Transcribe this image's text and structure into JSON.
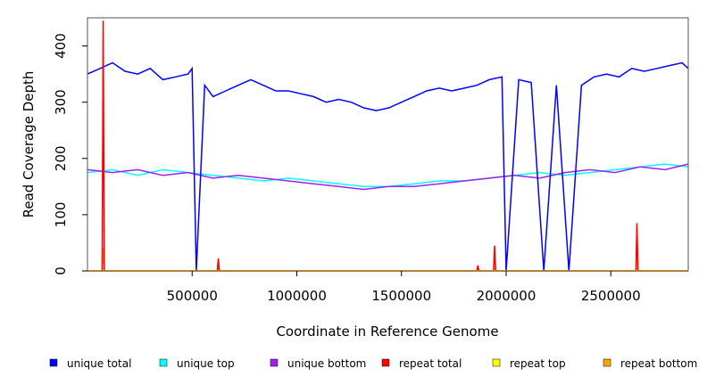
{
  "chart_data": {
    "type": "line",
    "xlabel": "Coordinate in Reference Genome",
    "ylabel": "Read Coverage Depth",
    "xlim": [
      0,
      2870000
    ],
    "ylim": [
      0,
      450
    ],
    "x_ticks": [
      500000,
      1000000,
      1500000,
      2000000,
      2500000
    ],
    "x_tick_labels": [
      "500000",
      "1000000",
      "1500000",
      "2000000",
      "2500000"
    ],
    "y_ticks": [
      0,
      100,
      200,
      300,
      400
    ],
    "y_tick_labels": [
      "0",
      "100",
      "200",
      "300",
      "400"
    ],
    "grid": false,
    "legend_position": "bottom",
    "series": [
      {
        "name": "unique total",
        "color": "#0000ff",
        "x": [
          0,
          60000,
          120000,
          180000,
          240000,
          300000,
          360000,
          420000,
          480000,
          500000,
          520000,
          560000,
          600000,
          660000,
          720000,
          780000,
          840000,
          900000,
          960000,
          1020000,
          1080000,
          1140000,
          1200000,
          1260000,
          1320000,
          1380000,
          1440000,
          1500000,
          1560000,
          1620000,
          1680000,
          1740000,
          1800000,
          1860000,
          1920000,
          1980000,
          2000000,
          2060000,
          2120000,
          2180000,
          2240000,
          2300000,
          2360000,
          2420000,
          2480000,
          2540000,
          2600000,
          2660000,
          2720000,
          2780000,
          2840000,
          2870000
        ],
        "values": [
          350,
          360,
          370,
          355,
          350,
          360,
          340,
          345,
          350,
          360,
          0,
          330,
          310,
          320,
          330,
          340,
          330,
          320,
          320,
          315,
          310,
          300,
          305,
          300,
          290,
          285,
          290,
          300,
          310,
          320,
          325,
          320,
          325,
          330,
          340,
          345,
          0,
          340,
          335,
          0,
          330,
          0,
          330,
          345,
          350,
          345,
          360,
          355,
          360,
          365,
          370,
          360
        ]
      },
      {
        "name": "unique top",
        "color": "#00ffff",
        "x": [
          0,
          120000,
          240000,
          360000,
          480000,
          600000,
          720000,
          840000,
          960000,
          1080000,
          1200000,
          1320000,
          1440000,
          1560000,
          1680000,
          1800000,
          1920000,
          2040000,
          2160000,
          2280000,
          2400000,
          2520000,
          2640000,
          2760000,
          2870000
        ],
        "values": [
          175,
          180,
          170,
          180,
          175,
          170,
          165,
          160,
          165,
          160,
          155,
          150,
          150,
          155,
          160,
          160,
          165,
          170,
          175,
          170,
          175,
          180,
          185,
          190,
          185
        ]
      },
      {
        "name": "unique bottom",
        "color": "#a020f0",
        "x": [
          0,
          120000,
          240000,
          360000,
          480000,
          600000,
          720000,
          840000,
          960000,
          1080000,
          1200000,
          1320000,
          1440000,
          1560000,
          1680000,
          1800000,
          1920000,
          2040000,
          2160000,
          2280000,
          2400000,
          2520000,
          2640000,
          2760000,
          2870000
        ],
        "values": [
          180,
          175,
          180,
          170,
          175,
          165,
          170,
          165,
          160,
          155,
          150,
          145,
          150,
          150,
          155,
          160,
          165,
          170,
          165,
          175,
          180,
          175,
          185,
          180,
          190
        ]
      },
      {
        "name": "repeat total",
        "color": "#ff0000",
        "x": [
          0,
          70000,
          75000,
          80000,
          620000,
          625000,
          630000,
          1860000,
          1865000,
          1870000,
          1940000,
          1945000,
          1950000,
          2620000,
          2625000,
          2630000,
          2870000
        ],
        "values": [
          0,
          0,
          445,
          0,
          0,
          22,
          0,
          0,
          10,
          0,
          0,
          45,
          0,
          0,
          85,
          0,
          0
        ]
      },
      {
        "name": "repeat top",
        "color": "#ffff00",
        "x": [
          0,
          2870000
        ],
        "values": [
          0,
          0
        ]
      },
      {
        "name": "repeat bottom",
        "color": "#ffa500",
        "x": [
          0,
          70000,
          75000,
          80000,
          620000,
          625000,
          630000,
          1860000,
          1865000,
          1870000,
          1940000,
          1945000,
          1950000,
          2620000,
          2625000,
          2630000,
          2870000
        ],
        "values": [
          0,
          0,
          40,
          0,
          0,
          12,
          0,
          0,
          5,
          0,
          0,
          25,
          0,
          0,
          75,
          0,
          0
        ]
      }
    ]
  }
}
